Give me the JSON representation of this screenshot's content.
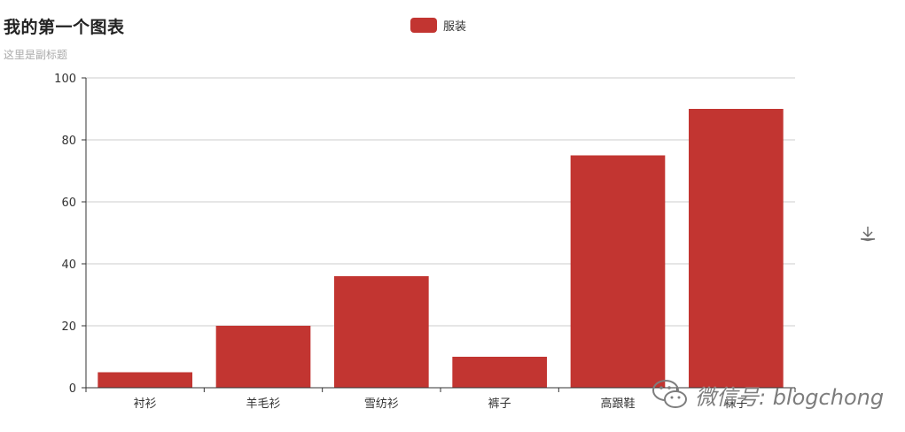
{
  "chart_data": {
    "type": "bar",
    "title": "我的第一个图表",
    "subtitle": "这里是副标题",
    "legend": [
      "服装"
    ],
    "legend_placement": "top-center",
    "categories": [
      "衬衫",
      "羊毛衫",
      "雪纺衫",
      "裤子",
      "高跟鞋",
      "袜子"
    ],
    "series": [
      {
        "name": "服装",
        "values": [
          5,
          20,
          36,
          10,
          75,
          90
        ]
      }
    ],
    "ylim": [
      0,
      100
    ],
    "yticks": [
      0,
      20,
      40,
      60,
      80,
      100
    ],
    "grid": true,
    "colors": {
      "bar": "#c23531"
    }
  },
  "toolbox": {
    "icon": "download-icon"
  },
  "watermark": {
    "text": "微信号: blogchong",
    "icon": "wechat-logo"
  }
}
